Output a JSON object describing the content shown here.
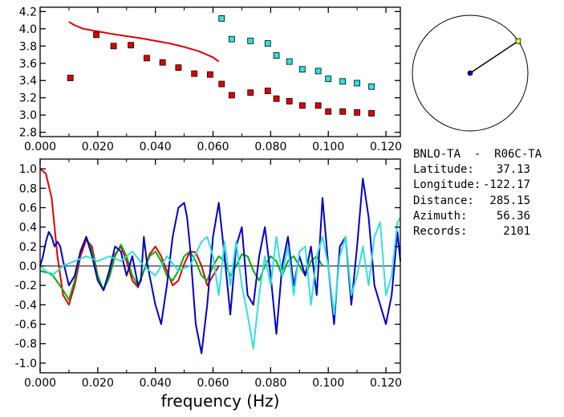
{
  "station_info": {
    "pair": "BNLO-TA  -  R06C-TA",
    "rows": [
      {
        "label": "Latitude:",
        "value": "37.13"
      },
      {
        "label": "Longitude:",
        "value": "-122.17"
      },
      {
        "label": "Distance:",
        "value": "285.15"
      },
      {
        "label": "Azimuth:",
        "value": "56.36"
      },
      {
        "label": "Records:",
        "value": "2101"
      }
    ]
  },
  "azimuth_deg": 56.36,
  "colors": {
    "red": "#e00000",
    "blue": "#0000c8",
    "cyan": "#30e0e0",
    "green": "#00b000",
    "axis": "#000000"
  },
  "chart_data": [
    {
      "type": "scatter",
      "xlim": [
        0.0,
        0.125
      ],
      "ylim": [
        2.75,
        4.25
      ],
      "xticks": [
        "0.000",
        "0.020",
        "0.040",
        "0.060",
        "0.080",
        "0.100",
        "0.120"
      ],
      "yticks": [
        "2.8",
        "3.0",
        "3.2",
        "3.4",
        "3.6",
        "3.8",
        "4.0",
        "4.2"
      ],
      "series": [
        {
          "kind": "line",
          "color": "red",
          "x": [
            0.01,
            0.012,
            0.015,
            0.02,
            0.025,
            0.03,
            0.035,
            0.04,
            0.045,
            0.05,
            0.055,
            0.06,
            0.062
          ],
          "y": [
            4.08,
            4.04,
            4.0,
            3.97,
            3.94,
            3.915,
            3.89,
            3.86,
            3.83,
            3.79,
            3.74,
            3.67,
            3.62
          ]
        },
        {
          "kind": "markers",
          "color": "red",
          "x": [
            0.0105,
            0.0195,
            0.0255,
            0.0315,
            0.037,
            0.0425,
            0.048,
            0.0535,
            0.059,
            0.063,
            0.0665,
            0.073,
            0.079,
            0.082,
            0.0865,
            0.091,
            0.0965,
            0.1,
            0.105,
            0.11,
            0.115
          ],
          "y": [
            3.43,
            3.93,
            3.8,
            3.81,
            3.66,
            3.61,
            3.55,
            3.48,
            3.47,
            3.36,
            3.23,
            3.26,
            3.28,
            3.19,
            3.16,
            3.11,
            3.11,
            3.04,
            3.04,
            3.03,
            3.02
          ]
        },
        {
          "kind": "markers",
          "color": "cyan",
          "x": [
            0.063,
            0.0665,
            0.073,
            0.079,
            0.082,
            0.0865,
            0.091,
            0.0965,
            0.1,
            0.105,
            0.11,
            0.115
          ],
          "y": [
            4.12,
            3.88,
            3.86,
            3.83,
            3.69,
            3.62,
            3.53,
            3.51,
            3.42,
            3.39,
            3.37,
            3.33
          ]
        }
      ]
    },
    {
      "type": "line",
      "xlim": [
        0.0,
        0.125
      ],
      "ylim": [
        -1.1,
        1.1
      ],
      "xlabel": "frequency (Hz)",
      "xticks": [
        "0.000",
        "0.020",
        "0.040",
        "0.060",
        "0.080",
        "0.100",
        "0.120"
      ],
      "yticks": [
        "1.0",
        "0.8",
        "0.6",
        "0.4",
        "0.2",
        "0.0",
        "-0.2",
        "-0.4",
        "-0.6",
        "-0.8",
        "-1.0"
      ],
      "series": [
        {
          "color": "red",
          "x": [
            0.0,
            0.002,
            0.004,
            0.006,
            0.008,
            0.01,
            0.012,
            0.014,
            0.016,
            0.018,
            0.02,
            0.022,
            0.024,
            0.026,
            0.028,
            0.03,
            0.032,
            0.034,
            0.036,
            0.038,
            0.04,
            0.042,
            0.044,
            0.046,
            0.048,
            0.05,
            0.052,
            0.054,
            0.056,
            0.058,
            0.06,
            0.062
          ],
          "y": [
            1.0,
            0.95,
            0.7,
            0.1,
            -0.3,
            -0.4,
            -0.2,
            0.1,
            0.27,
            0.2,
            -0.1,
            -0.25,
            -0.1,
            0.12,
            0.2,
            0.05,
            -0.15,
            -0.22,
            -0.05,
            0.12,
            0.2,
            0.1,
            -0.05,
            -0.2,
            -0.15,
            0.02,
            0.15,
            0.14,
            0.0,
            -0.2,
            -0.1,
            0.0
          ]
        },
        {
          "color": "green",
          "x": [
            0.0,
            0.004,
            0.008,
            0.01,
            0.012,
            0.014,
            0.016,
            0.018,
            0.02,
            0.022,
            0.024,
            0.026,
            0.028,
            0.03,
            0.032,
            0.034,
            0.036,
            0.038,
            0.04,
            0.042,
            0.044,
            0.046,
            0.048,
            0.05,
            0.052,
            0.054,
            0.056,
            0.058,
            0.06,
            0.062,
            0.064,
            0.066,
            0.068,
            0.07,
            0.072,
            0.074,
            0.076,
            0.078,
            0.08,
            0.082,
            0.084,
            0.086,
            0.088,
            0.09,
            0.092,
            0.094,
            0.096,
            0.098
          ],
          "y": [
            -0.05,
            -0.08,
            -0.25,
            -0.35,
            -0.15,
            0.15,
            0.3,
            0.15,
            -0.1,
            -0.25,
            -0.12,
            0.1,
            0.22,
            0.1,
            -0.1,
            -0.2,
            -0.05,
            0.1,
            0.15,
            0.05,
            -0.1,
            -0.15,
            -0.05,
            0.1,
            0.15,
            0.05,
            -0.1,
            -0.15,
            0.0,
            0.1,
            0.05,
            -0.1,
            0.0,
            0.12,
            0.1,
            -0.05,
            -0.15,
            0.0,
            0.1,
            0.05,
            -0.1,
            0.05,
            0.1,
            0.0,
            -0.1,
            0.05,
            0.1,
            0.0
          ]
        },
        {
          "color": "blue",
          "x": [
            0.0,
            0.001,
            0.002,
            0.003,
            0.004,
            0.005,
            0.006,
            0.007,
            0.008,
            0.01,
            0.012,
            0.014,
            0.016,
            0.018,
            0.02,
            0.022,
            0.024,
            0.026,
            0.028,
            0.03,
            0.032,
            0.034,
            0.035,
            0.036,
            0.037,
            0.038,
            0.04,
            0.042,
            0.044,
            0.046,
            0.048,
            0.05,
            0.051,
            0.052,
            0.054,
            0.056,
            0.058,
            0.06,
            0.062,
            0.064,
            0.066,
            0.068,
            0.07,
            0.072,
            0.074,
            0.076,
            0.078,
            0.08,
            0.082,
            0.084,
            0.086,
            0.088,
            0.09,
            0.092,
            0.094,
            0.096,
            0.098,
            0.1,
            0.102,
            0.104,
            0.106,
            0.108,
            0.11,
            0.112,
            0.114,
            0.116,
            0.118,
            0.12,
            0.122,
            0.124,
            0.125
          ],
          "y": [
            0.0,
            0.1,
            0.25,
            0.35,
            0.3,
            0.2,
            0.25,
            0.2,
            0.05,
            -0.2,
            -0.1,
            0.15,
            0.3,
            0.1,
            -0.15,
            -0.25,
            -0.05,
            0.2,
            0.15,
            -0.1,
            0.1,
            -0.2,
            -0.15,
            0.3,
            0.05,
            -0.1,
            -0.4,
            -0.6,
            -0.2,
            0.3,
            0.6,
            0.65,
            0.5,
            0.2,
            -0.6,
            -0.9,
            -0.4,
            0.3,
            0.65,
            0.1,
            -0.5,
            0.2,
            0.4,
            -0.3,
            -0.4,
            0.1,
            0.4,
            -0.1,
            -0.7,
            0.0,
            0.3,
            -0.2,
            0.1,
            -0.1,
            0.2,
            -0.3,
            0.7,
            0.0,
            -0.6,
            0.2,
            0.3,
            -0.4,
            0.2,
            0.9,
            0.5,
            -0.2,
            -0.4,
            -0.6,
            -0.3,
            0.35,
            0.05
          ]
        },
        {
          "color": "cyan",
          "x": [
            0.0,
            0.004,
            0.008,
            0.012,
            0.016,
            0.02,
            0.024,
            0.028,
            0.032,
            0.036,
            0.04,
            0.044,
            0.048,
            0.052,
            0.056,
            0.058,
            0.06,
            0.062,
            0.064,
            0.066,
            0.068,
            0.07,
            0.072,
            0.074,
            0.076,
            0.078,
            0.08,
            0.082,
            0.084,
            0.086,
            0.088,
            0.09,
            0.092,
            0.094,
            0.096,
            0.098,
            0.1,
            0.102,
            0.104,
            0.106,
            0.108,
            0.11,
            0.112,
            0.114,
            0.116,
            0.118,
            0.12,
            0.122,
            0.124,
            0.125
          ],
          "y": [
            0.0,
            -0.1,
            0.0,
            0.05,
            0.1,
            0.05,
            0.1,
            0.05,
            0.15,
            0.0,
            -0.1,
            0.1,
            -0.05,
            0.0,
            0.25,
            0.3,
            0.1,
            -0.3,
            0.25,
            -0.2,
            0.25,
            -0.2,
            -0.5,
            -0.85,
            -0.3,
            0.1,
            -0.2,
            0.3,
            -0.1,
            0.2,
            -0.3,
            0.15,
            0.2,
            -0.4,
            0.1,
            0.3,
            0.0,
            -0.5,
            0.1,
            0.3,
            -0.3,
            -0.1,
            0.2,
            -0.2,
            0.3,
            0.45,
            -0.3,
            -0.1,
            0.45,
            0.5
          ]
        }
      ]
    }
  ]
}
